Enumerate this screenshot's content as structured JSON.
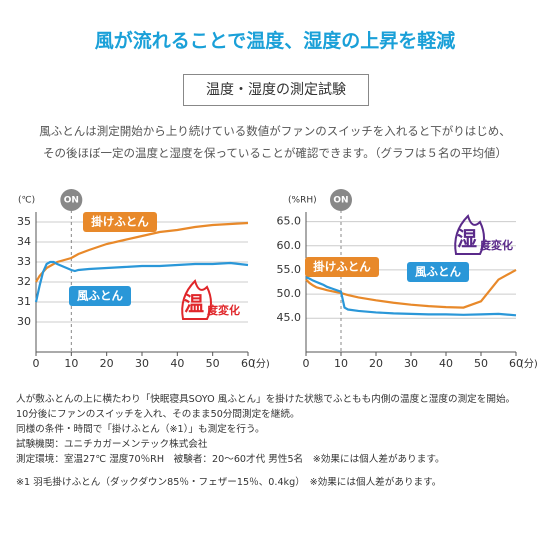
{
  "header": {
    "title": "風が流れることで温度、湿度の上昇を軽減",
    "subtitle": "温度・湿度の測定試験",
    "description": [
      "風ふとんは測定開始から上り続けている数値がファンのスイッチを入れると下がりはじめ、",
      "その後ほぼ一定の温度と湿度を保っていることが確認できます。（グラフは５名の平均値）"
    ]
  },
  "chart_data": [
    {
      "type": "line",
      "y_label": "(℃)",
      "x_label": "(分)",
      "marker_label": "ON",
      "marker_x": 10,
      "badge": {
        "big": "温",
        "small": "度変化"
      },
      "x": [
        0,
        1,
        2,
        3,
        4,
        5,
        6,
        8,
        10,
        11,
        12,
        15,
        20,
        25,
        30,
        35,
        40,
        45,
        50,
        55,
        60
      ],
      "series": [
        {
          "name": "掛けふとん",
          "color": "#e8892a",
          "values": [
            32.0,
            32.3,
            32.5,
            32.7,
            32.8,
            32.9,
            33.0,
            33.1,
            33.2,
            33.3,
            33.4,
            33.6,
            33.9,
            34.1,
            34.3,
            34.5,
            34.6,
            34.75,
            34.85,
            34.9,
            34.95
          ]
        },
        {
          "name": "風ふとん",
          "color": "#2a97d8",
          "values": [
            31.0,
            31.8,
            32.5,
            32.9,
            33.0,
            33.0,
            32.9,
            32.75,
            32.6,
            32.55,
            32.6,
            32.65,
            32.7,
            32.75,
            32.8,
            32.8,
            32.85,
            32.9,
            32.9,
            32.95,
            32.85
          ]
        }
      ],
      "xlim": [
        0,
        60
      ],
      "xticks": [
        0,
        10,
        20,
        30,
        40,
        50,
        60
      ],
      "ylim": [
        28.5,
        35.5
      ],
      "yticks": [
        30,
        31,
        32,
        33,
        34,
        35
      ],
      "grid": true
    },
    {
      "type": "line",
      "y_label": "(%RH)",
      "x_label": "(分)",
      "marker_label": "ON",
      "marker_x": 10,
      "badge": {
        "big": "湿",
        "small": "度変化"
      },
      "x": [
        0,
        1,
        2,
        3,
        4,
        5,
        6,
        8,
        10,
        11,
        12,
        15,
        20,
        25,
        30,
        35,
        40,
        45,
        50,
        55,
        60
      ],
      "series": [
        {
          "name": "掛けふとん",
          "color": "#e8892a",
          "values": [
            53.0,
            52.3,
            51.8,
            51.4,
            51.2,
            51.0,
            50.8,
            50.5,
            50.2,
            50.0,
            49.8,
            49.3,
            48.7,
            48.2,
            47.8,
            47.5,
            47.3,
            47.2,
            48.5,
            53.0,
            55.0
          ]
        },
        {
          "name": "風ふとん",
          "color": "#2a97d8",
          "values": [
            53.5,
            53.2,
            52.8,
            52.5,
            52.2,
            51.9,
            51.5,
            51.0,
            50.5,
            47.2,
            46.8,
            46.5,
            46.2,
            46.0,
            45.9,
            45.8,
            45.8,
            45.7,
            45.8,
            45.9,
            45.6
          ]
        }
      ],
      "xlim": [
        0,
        60
      ],
      "xticks": [
        0,
        10,
        20,
        30,
        40,
        50,
        60
      ],
      "ylim": [
        38,
        67
      ],
      "yticks": [
        {
          "value": 45,
          "label": "45.0"
        },
        {
          "value": 50,
          "label": "50.0"
        },
        {
          "value": 55,
          "label": "55.0"
        },
        {
          "value": 60,
          "label": "60.0"
        },
        {
          "value": 65,
          "label": "65.0"
        }
      ],
      "grid": true
    }
  ],
  "footnotes": [
    "人が敷ふとんの上に横たわり「快眠寝具SOYO 風ふとん」を掛けた状態でふともも内側の温度と湿度の測定を開始。",
    "10分後にファンのスイッチを入れ、そのまま50分間測定を継続。",
    "同様の条件・時間で「掛けふとん（※1）」も測定を行う。",
    "試験機関：ユニチカガーメンテック株式会社",
    "測定環境：室温27℃ 湿度70％RH　被験者：20～60才代 男性5名　※効果には個人差があります。",
    "※1 羽毛掛けふとん（ダックダウン85％・フェザー15％、0.4kg）　※効果には個人差があります。"
  ]
}
